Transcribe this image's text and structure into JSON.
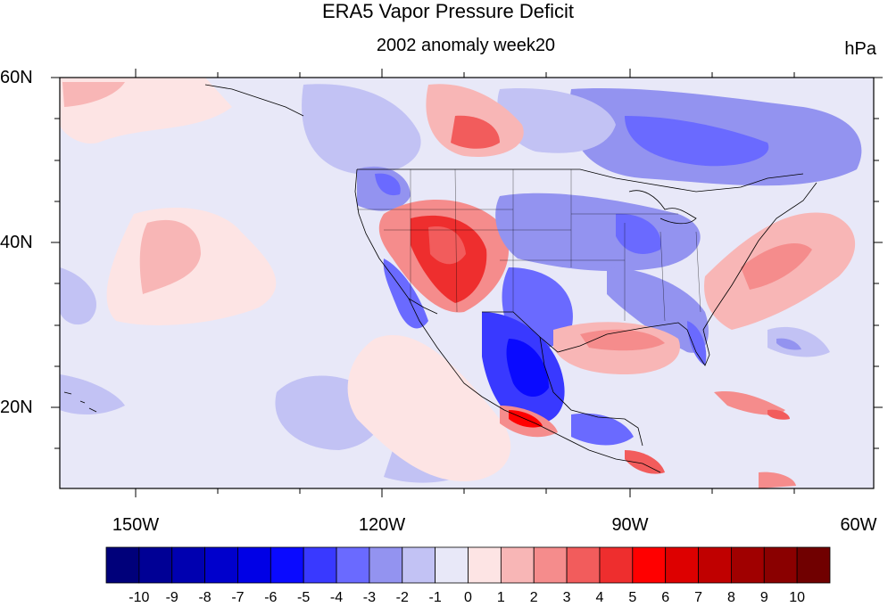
{
  "title": "ERA5 Vapor Pressure Deficit",
  "subtitle": "2002 anomaly week20",
  "units": "hPa",
  "lat_labels": [
    "60N",
    "40N",
    "20N"
  ],
  "lon_labels": [
    "150W",
    "120W",
    "90W",
    "60W"
  ],
  "colorbar_labels": [
    "-10",
    "-9",
    "-8",
    "-7",
    "-6",
    "-5",
    "-4",
    "-3",
    "-2",
    "-1",
    "0",
    "1",
    "2",
    "3",
    "4",
    "5",
    "6",
    "7",
    "8",
    "9",
    "10"
  ],
  "colorbar_colors": [
    "#00007a",
    "#000095",
    "#0000b0",
    "#0000cc",
    "#0000e6",
    "#0a0aff",
    "#3939ff",
    "#6a6aff",
    "#9393f0",
    "#c2c2f4",
    "#e8e8f8",
    "#fde4e4",
    "#f8b6b6",
    "#f58c8c",
    "#f25c5c",
    "#ee2e2e",
    "#ff0000",
    "#dd0000",
    "#c00000",
    "#a00000",
    "#8a0000",
    "#700000"
  ],
  "map_extent": {
    "lon": [
      -160,
      -60
    ],
    "lat": [
      10,
      60
    ]
  }
}
